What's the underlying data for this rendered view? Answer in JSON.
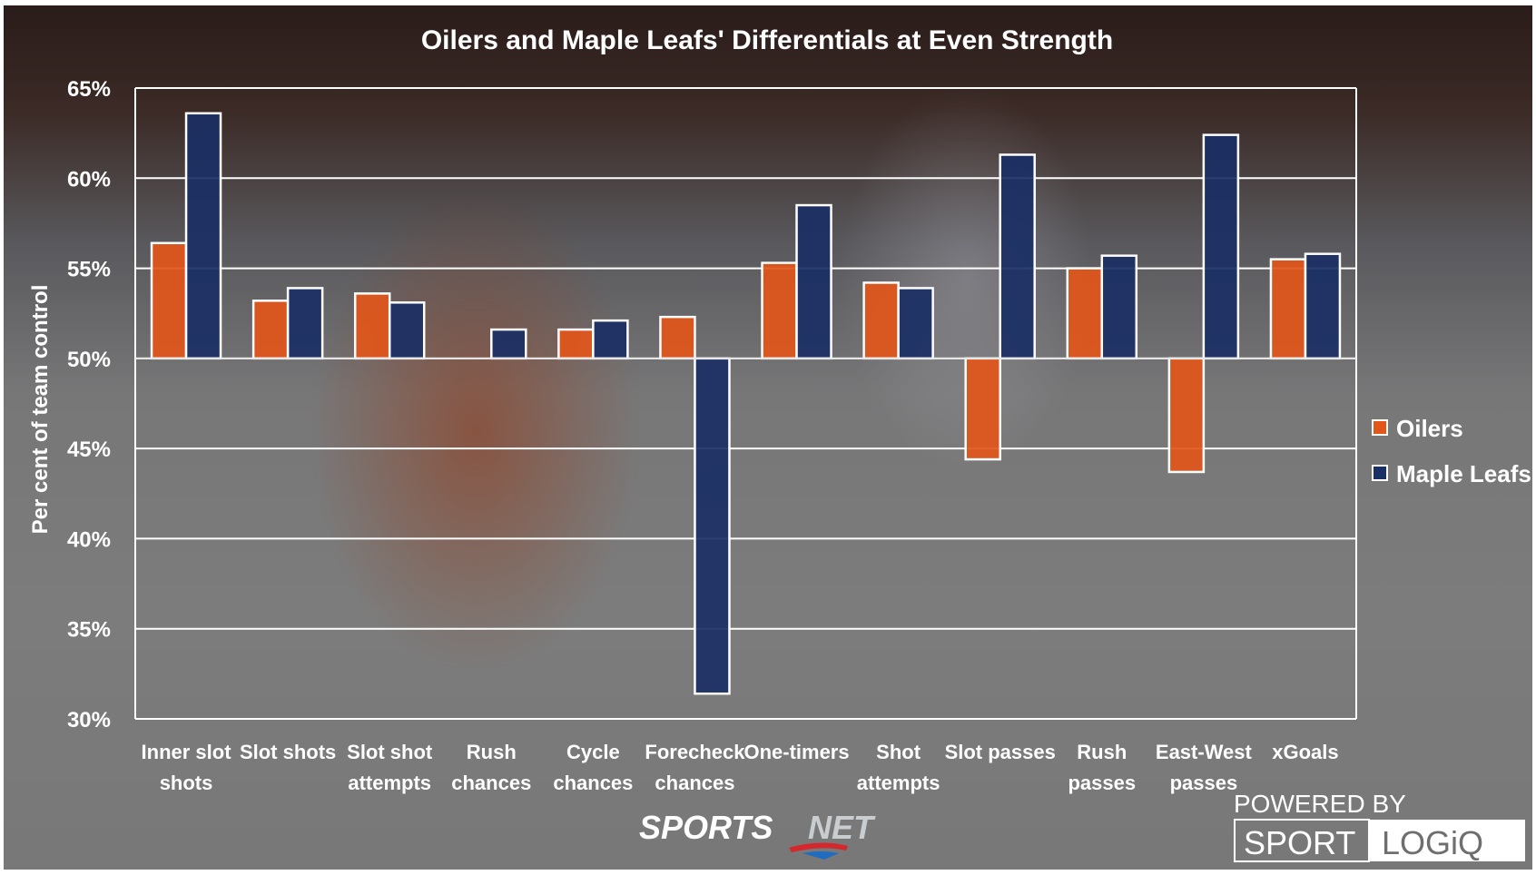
{
  "chart_data": {
    "type": "bar",
    "title": "Oilers and Maple Leafs' Differentials at Even Strength",
    "xlabel": "",
    "ylabel": "Per cent of team control",
    "ylim": [
      30,
      65
    ],
    "baseline": 50,
    "yticks": [
      30,
      35,
      40,
      45,
      50,
      55,
      60,
      65
    ],
    "ytick_labels": [
      "30%",
      "35%",
      "40%",
      "45%",
      "50%",
      "55%",
      "60%",
      "65%"
    ],
    "grid": true,
    "legend_position": "right",
    "categories": [
      [
        "Inner slot",
        "shots"
      ],
      [
        "Slot shots"
      ],
      [
        "Slot shot",
        "attempts"
      ],
      [
        "Rush",
        "chances"
      ],
      [
        "Cycle",
        "chances"
      ],
      [
        "Forecheck",
        "chances"
      ],
      [
        "One-timers"
      ],
      [
        "Shot",
        "attempts"
      ],
      [
        "Slot passes"
      ],
      [
        "Rush",
        "passes"
      ],
      [
        "East-West",
        "passes"
      ],
      [
        "xGoals"
      ]
    ],
    "series": [
      {
        "name": "Oilers",
        "color": "#e2561a",
        "values": [
          56.4,
          53.2,
          53.6,
          50.0,
          51.6,
          52.3,
          55.3,
          54.2,
          44.4,
          55.0,
          43.7,
          55.5
        ]
      },
      {
        "name": "Maple Leafs",
        "color": "#1a2f64",
        "values": [
          63.6,
          53.9,
          53.1,
          51.6,
          52.1,
          31.4,
          58.5,
          53.9,
          61.3,
          55.7,
          62.4,
          55.8
        ]
      }
    ]
  },
  "branding": {
    "sportsnet_left": "SPORTS",
    "sportsnet_right": "NET",
    "powered_by": "POWERED BY",
    "sport": "SPORT",
    "logiq": "LOGiQ"
  }
}
